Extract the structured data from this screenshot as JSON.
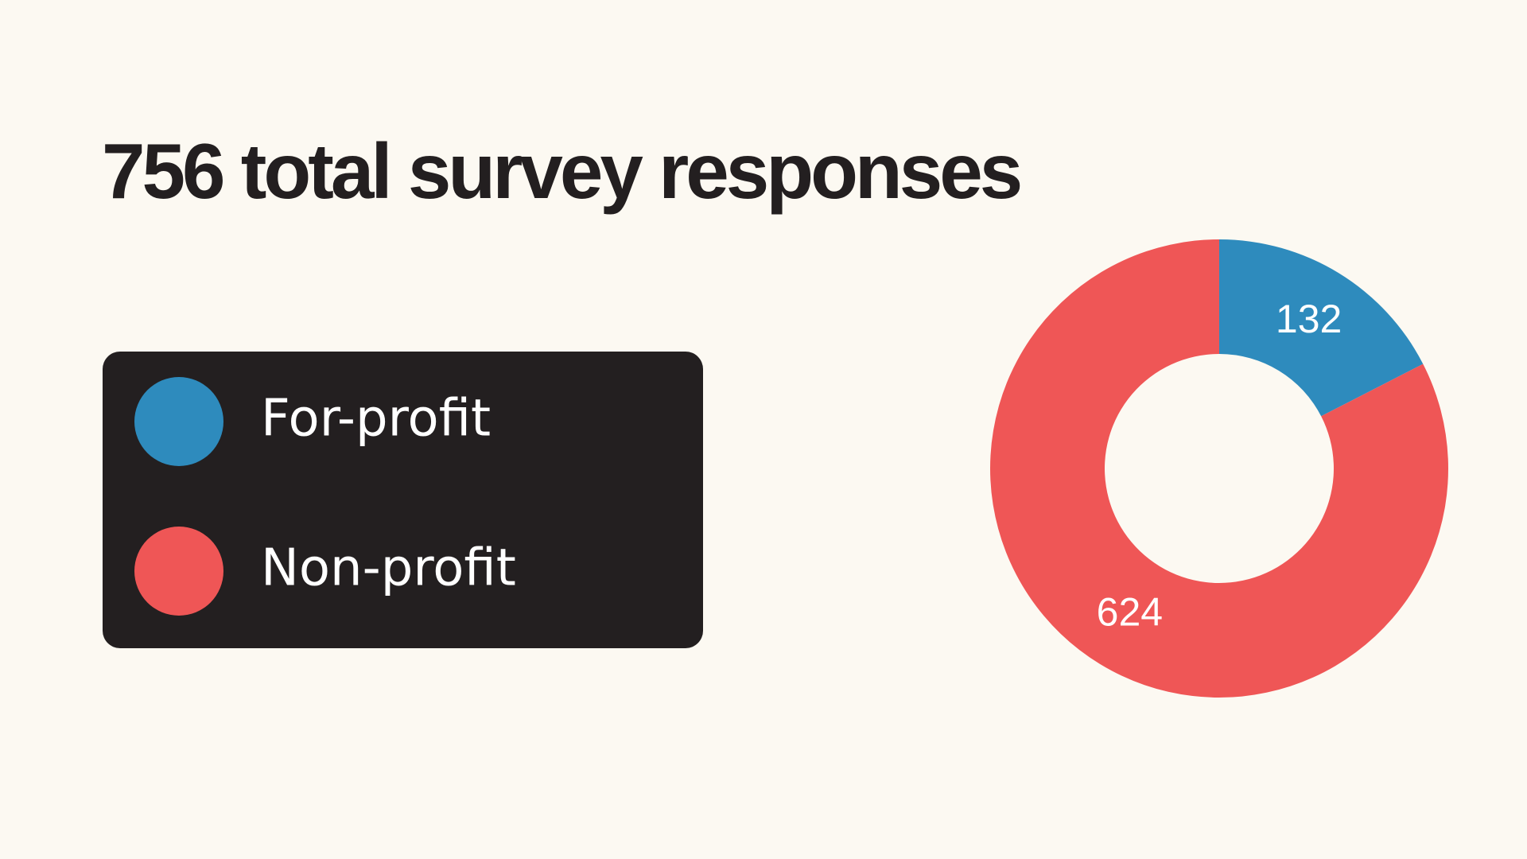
{
  "chart_data": {
    "type": "donut",
    "title": "756 total survey responses",
    "categories": [
      "For-profit",
      "Non-profit"
    ],
    "values": [
      132,
      624
    ],
    "colors": [
      "#2e8bbd",
      "#ef5656"
    ]
  }
}
